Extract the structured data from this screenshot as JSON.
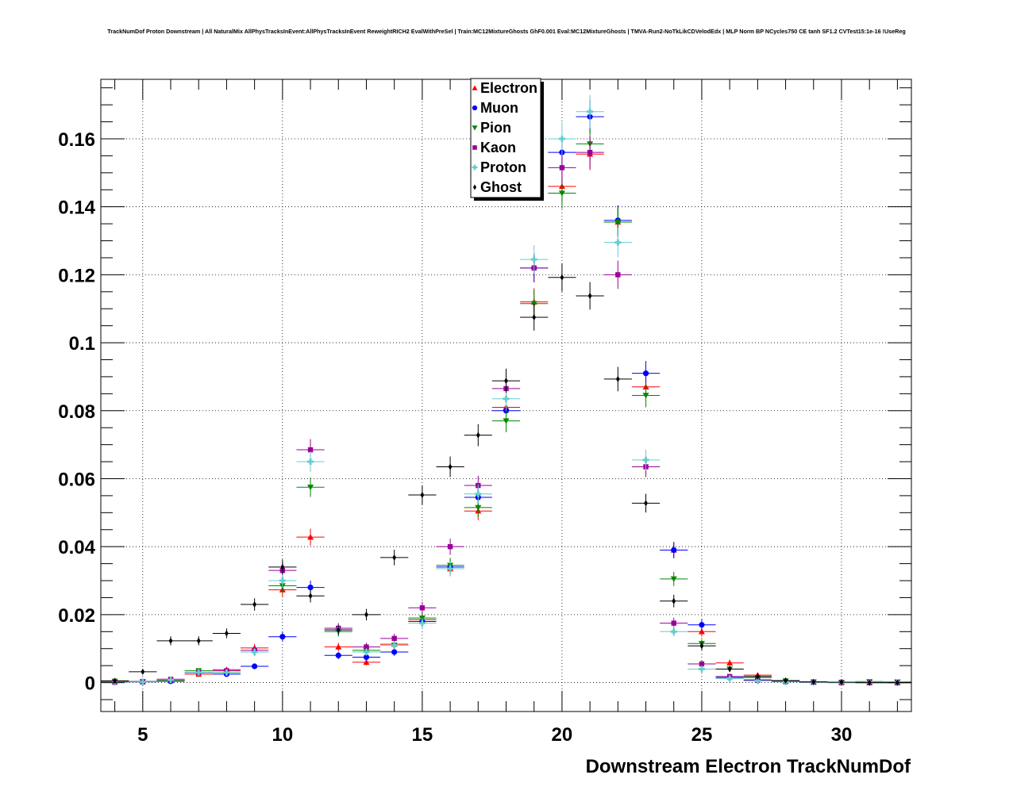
{
  "chart_data": {
    "type": "scatter",
    "title": "TrackNumDof Proton Downstream | All NaturalMix AllPhysTracksInEvent:AllPhysTracksInEvent ReweightRICH2 EvalWithPreSel | Train:MC12MixtureGhosts GhF0.001 Eval:MC12MixtureGhosts | TMVA-Run2-NoTkLikCDVelodEdx | MLP Norm BP NCycles750 CE tanh SF1.2 CVTest15:1e-16 !UseReg",
    "xlabel": "Downstream Electron TrackNumDof",
    "ylabel": "",
    "xlim": [
      3.5,
      32.5
    ],
    "ylim": [
      -0.0085,
      0.1775
    ],
    "x_ticks": [
      5,
      10,
      15,
      20,
      25,
      30
    ],
    "x_tick_labels": [
      "5",
      "10",
      "15",
      "20",
      "25",
      "30"
    ],
    "y_ticks": [
      0,
      0.02,
      0.04,
      0.06,
      0.08,
      0.1,
      0.12,
      0.14,
      0.16
    ],
    "y_tick_labels": [
      "0",
      "0.02",
      "0.04",
      "0.06",
      "0.08",
      "0.1",
      "0.12",
      "0.14",
      "0.16"
    ],
    "grid": true,
    "legend_position": "top-center",
    "x": [
      4,
      5,
      6,
      7,
      8,
      9,
      10,
      11,
      12,
      13,
      14,
      15,
      16,
      17,
      18,
      19,
      20,
      21,
      22,
      23,
      24,
      25,
      26,
      27,
      28,
      29,
      30,
      31,
      32
    ],
    "series": [
      {
        "name": "Electron",
        "marker": "triangle-up",
        "color": "#ff0000",
        "values": [
          0.0005,
          0.0003,
          0.0006,
          0.0025,
          0.0038,
          0.0102,
          0.0273,
          0.0428,
          0.0105,
          0.006,
          0.0113,
          0.0185,
          0.0335,
          0.0505,
          0.081,
          0.112,
          0.146,
          0.1555,
          0.1355,
          0.087,
          0.039,
          0.015,
          0.0058,
          0.0022,
          0.0006,
          0.0002,
          0.0001,
          0.0,
          0.0
        ]
      },
      {
        "name": "Muon",
        "marker": "circle",
        "color": "#0000ff",
        "values": [
          0.0002,
          0.0003,
          0.0004,
          0.003,
          0.0025,
          0.0048,
          0.0135,
          0.028,
          0.008,
          0.0075,
          0.009,
          0.018,
          0.034,
          0.0545,
          0.08,
          0.122,
          0.156,
          0.1665,
          0.136,
          0.091,
          0.039,
          0.017,
          0.0015,
          0.0008,
          0.0004,
          0.0002,
          0.0001,
          0.0,
          0.0
        ]
      },
      {
        "name": "Pion",
        "marker": "triangle-down",
        "color": "#008800",
        "values": [
          0.0004,
          0.0003,
          0.0005,
          0.0035,
          0.003,
          0.009,
          0.0285,
          0.0575,
          0.015,
          0.0095,
          0.011,
          0.019,
          0.0345,
          0.0515,
          0.077,
          0.1115,
          0.144,
          0.1585,
          0.1355,
          0.0845,
          0.0305,
          0.0115,
          0.004,
          0.0015,
          0.0005,
          0.0002,
          0.0001,
          0.0003,
          0.0002
        ]
      },
      {
        "name": "Kaon",
        "marker": "square",
        "color": "#990099",
        "values": [
          0.0001,
          0.0002,
          0.001,
          0.003,
          0.0035,
          0.0095,
          0.033,
          0.0685,
          0.016,
          0.0105,
          0.013,
          0.022,
          0.04,
          0.058,
          0.0865,
          0.122,
          0.1515,
          0.156,
          0.12,
          0.0635,
          0.0175,
          0.0055,
          0.0018,
          0.0007,
          0.0003,
          0.0001,
          0.0,
          0.0,
          0.0
        ]
      },
      {
        "name": "Proton",
        "marker": "cross",
        "color": "#66cccc",
        "values": [
          0.0001,
          0.0002,
          0.0008,
          0.003,
          0.003,
          0.009,
          0.03,
          0.065,
          0.0155,
          0.009,
          0.011,
          0.0175,
          0.0335,
          0.0555,
          0.0835,
          0.1245,
          0.16,
          0.168,
          0.1295,
          0.0655,
          0.015,
          0.004,
          0.0012,
          0.0005,
          0.0002,
          0.0001,
          0.0,
          0.0,
          0.0
        ]
      },
      {
        "name": "Ghost",
        "marker": "diamond",
        "color": "#000000",
        "values": [
          0.0005,
          0.0032,
          0.0123,
          0.0123,
          0.0145,
          0.023,
          0.034,
          0.0255,
          0.0155,
          0.02,
          0.0368,
          0.0552,
          0.0635,
          0.0728,
          0.0888,
          0.1075,
          0.1192,
          0.1138,
          0.0893,
          0.0528,
          0.024,
          0.0108,
          0.004,
          0.0018,
          0.0006,
          0.0002,
          0.0001,
          0.0,
          0.0
        ]
      }
    ]
  }
}
